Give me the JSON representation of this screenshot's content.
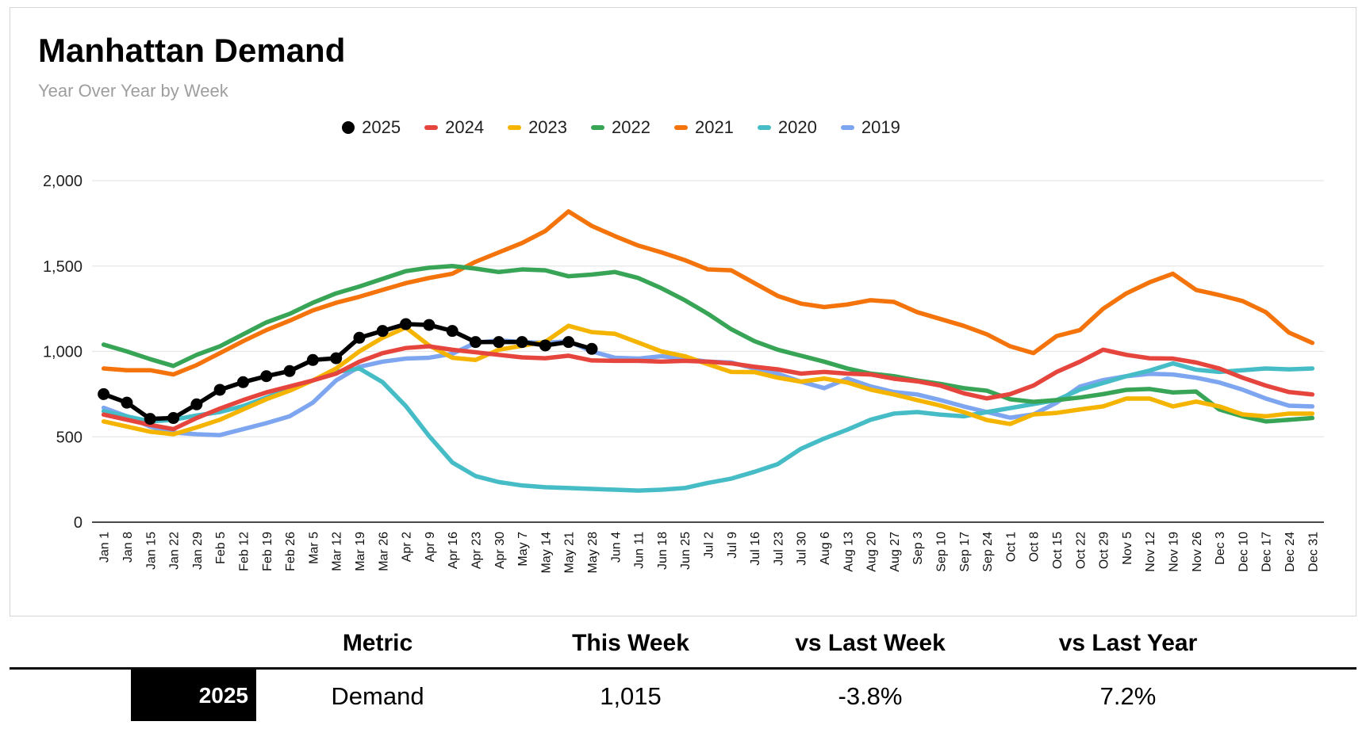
{
  "header": {
    "title": "Manhattan Demand",
    "subtitle": "Year Over Year by Week"
  },
  "chart_data": {
    "type": "line",
    "title": "Manhattan Demand",
    "subtitle": "Year Over Year by Week",
    "legend_position": "top",
    "grid": true,
    "ylim": [
      0,
      2000
    ],
    "y_ticks": [
      "2,000",
      "1,500",
      "1,000",
      "500",
      "0"
    ],
    "y_tick_values": [
      2000,
      1500,
      1000,
      500,
      0
    ],
    "categories": [
      "Jan 1",
      "Jan 8",
      "Jan 15",
      "Jan 22",
      "Jan 29",
      "Feb 5",
      "Feb 12",
      "Feb 19",
      "Feb 26",
      "Mar 5",
      "Mar 12",
      "Mar 19",
      "Mar 26",
      "Apr 2",
      "Apr 9",
      "Apr 16",
      "Apr 23",
      "Apr 30",
      "May 7",
      "May 14",
      "May 21",
      "May 28",
      "Jun 4",
      "Jun 11",
      "Jun 18",
      "Jun 25",
      "Jul 2",
      "Jul 9",
      "Jul 16",
      "Jul 23",
      "Jul 30",
      "Aug 6",
      "Aug 13",
      "Aug 20",
      "Aug 27",
      "Sep 3",
      "Sep 10",
      "Sep 17",
      "Sep 24",
      "Oct 1",
      "Oct 8",
      "Oct 15",
      "Oct 22",
      "Oct 29",
      "Nov 5",
      "Nov 12",
      "Nov 19",
      "Nov 26",
      "Dec 3",
      "Dec 10",
      "Dec 17",
      "Dec 24",
      "Dec 31"
    ],
    "series": [
      {
        "name": "2025",
        "color": "#000000",
        "marker": "circle",
        "style": "line+dots",
        "values": [
          750,
          700,
          605,
          610,
          690,
          775,
          820,
          855,
          885,
          950,
          960,
          1080,
          1120,
          1160,
          1155,
          1120,
          1055,
          1055,
          1055,
          1035,
          1055,
          1015
        ]
      },
      {
        "name": "2024",
        "color": "#e5453d",
        "marker": "dash",
        "style": "line",
        "values": [
          630,
          600,
          570,
          545,
          610,
          665,
          715,
          760,
          795,
          830,
          870,
          940,
          990,
          1020,
          1030,
          1010,
          995,
          980,
          965,
          960,
          975,
          947,
          945,
          945,
          940,
          945,
          940,
          930,
          910,
          895,
          870,
          880,
          870,
          865,
          840,
          825,
          800,
          755,
          725,
          750,
          800,
          880,
          940,
          1010,
          980,
          960,
          958,
          935,
          900,
          846,
          800,
          762,
          748
        ]
      },
      {
        "name": "2023",
        "color": "#f4b400",
        "marker": "dash",
        "style": "line",
        "values": [
          590,
          560,
          530,
          515,
          555,
          600,
          660,
          720,
          770,
          830,
          900,
          1000,
          1080,
          1140,
          1035,
          963,
          950,
          1010,
          1033,
          1056,
          1150,
          1113,
          1103,
          1052,
          1000,
          972,
          925,
          880,
          879,
          846,
          823,
          841,
          818,
          776,
          748,
          715,
          683,
          645,
          598,
          575,
          631,
          640,
          660,
          678,
          724,
          724,
          678,
          706,
          678,
          631,
          620,
          636,
          636
        ]
      },
      {
        "name": "2022",
        "color": "#37a456",
        "marker": "dash",
        "style": "line",
        "values": [
          1040,
          1000,
          955,
          915,
          980,
          1030,
          1100,
          1170,
          1220,
          1285,
          1340,
          1380,
          1425,
          1470,
          1490,
          1500,
          1485,
          1465,
          1480,
          1475,
          1440,
          1450,
          1465,
          1430,
          1370,
          1300,
          1220,
          1130,
          1060,
          1010,
          975,
          940,
          900,
          870,
          855,
          830,
          810,
          785,
          770,
          720,
          705,
          715,
          730,
          750,
          775,
          780,
          760,
          765,
          660,
          620,
          590,
          600,
          610
        ]
      },
      {
        "name": "2021",
        "color": "#f4740b",
        "marker": "dash",
        "style": "line",
        "values": [
          900,
          890,
          890,
          865,
          920,
          990,
          1060,
          1125,
          1180,
          1240,
          1285,
          1320,
          1360,
          1400,
          1430,
          1455,
          1525,
          1580,
          1635,
          1705,
          1820,
          1735,
          1675,
          1620,
          1580,
          1535,
          1480,
          1475,
          1400,
          1325,
          1280,
          1260,
          1275,
          1300,
          1290,
          1230,
          1190,
          1150,
          1100,
          1030,
          990,
          1090,
          1125,
          1250,
          1340,
          1405,
          1455,
          1360,
          1330,
          1295,
          1230,
          1110,
          1050
        ]
      },
      {
        "name": "2020",
        "color": "#46bdc6",
        "marker": "dash",
        "style": "line",
        "values": [
          650,
          620,
          590,
          600,
          625,
          645,
          680,
          730,
          780,
          830,
          880,
          900,
          820,
          680,
          505,
          350,
          270,
          235,
          215,
          205,
          200,
          195,
          190,
          185,
          190,
          200,
          230,
          255,
          295,
          340,
          430,
          490,
          542,
          600,
          636,
          645,
          630,
          620,
          645,
          668,
          692,
          715,
          776,
          815,
          855,
          888,
          930,
          893,
          880,
          890,
          900,
          895,
          900
        ]
      },
      {
        "name": "2019",
        "color": "#7ea6f0",
        "marker": "dash",
        "style": "line",
        "values": [
          670,
          620,
          560,
          525,
          515,
          510,
          545,
          580,
          620,
          700,
          830,
          910,
          940,
          958,
          963,
          986,
          1050,
          1065,
          1055,
          1050,
          1060,
          1000,
          963,
          958,
          972,
          958,
          940,
          935,
          900,
          869,
          823,
          785,
          841,
          795,
          762,
          748,
          715,
          678,
          645,
          612,
          631,
          700,
          794,
          832,
          855,
          869,
          865,
          846,
          818,
          776,
          724,
          682,
          678
        ]
      }
    ]
  },
  "table": {
    "columns": [
      "Metric",
      "This Week",
      "vs Last Week",
      "vs Last Year"
    ],
    "row": {
      "year": "2025",
      "metric": "Demand",
      "this_week": "1,015",
      "vs_last_week": "-3.8%",
      "vs_last_year": "7.2%"
    }
  }
}
